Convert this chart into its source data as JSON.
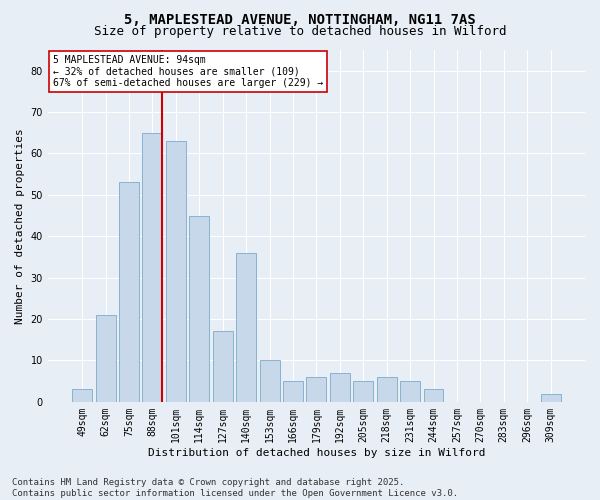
{
  "title_line1": "5, MAPLESTEAD AVENUE, NOTTINGHAM, NG11 7AS",
  "title_line2": "Size of property relative to detached houses in Wilford",
  "xlabel": "Distribution of detached houses by size in Wilford",
  "ylabel": "Number of detached properties",
  "categories": [
    "49sqm",
    "62sqm",
    "75sqm",
    "88sqm",
    "101sqm",
    "114sqm",
    "127sqm",
    "140sqm",
    "153sqm",
    "166sqm",
    "179sqm",
    "192sqm",
    "205sqm",
    "218sqm",
    "231sqm",
    "244sqm",
    "257sqm",
    "270sqm",
    "283sqm",
    "296sqm",
    "309sqm"
  ],
  "values": [
    3,
    21,
    53,
    65,
    63,
    45,
    17,
    36,
    10,
    5,
    6,
    7,
    5,
    6,
    5,
    3,
    0,
    0,
    0,
    0,
    2
  ],
  "bar_color": "#c8d8eb",
  "bar_edgecolor": "#7baaca",
  "line_color": "#cc0000",
  "annotation_text": "5 MAPLESTEAD AVENUE: 94sqm\n← 32% of detached houses are smaller (109)\n67% of semi-detached houses are larger (229) →",
  "annotation_box_facecolor": "#ffffff",
  "annotation_box_edgecolor": "#cc0000",
  "ylim": [
    0,
    85
  ],
  "yticks": [
    0,
    10,
    20,
    30,
    40,
    50,
    60,
    70,
    80
  ],
  "background_color": "#e8eef5",
  "footer_line1": "Contains HM Land Registry data © Crown copyright and database right 2025.",
  "footer_line2": "Contains public sector information licensed under the Open Government Licence v3.0.",
  "title_fontsize": 10,
  "subtitle_fontsize": 9,
  "axis_label_fontsize": 8,
  "tick_fontsize": 7,
  "annotation_fontsize": 7,
  "footer_fontsize": 6.5
}
